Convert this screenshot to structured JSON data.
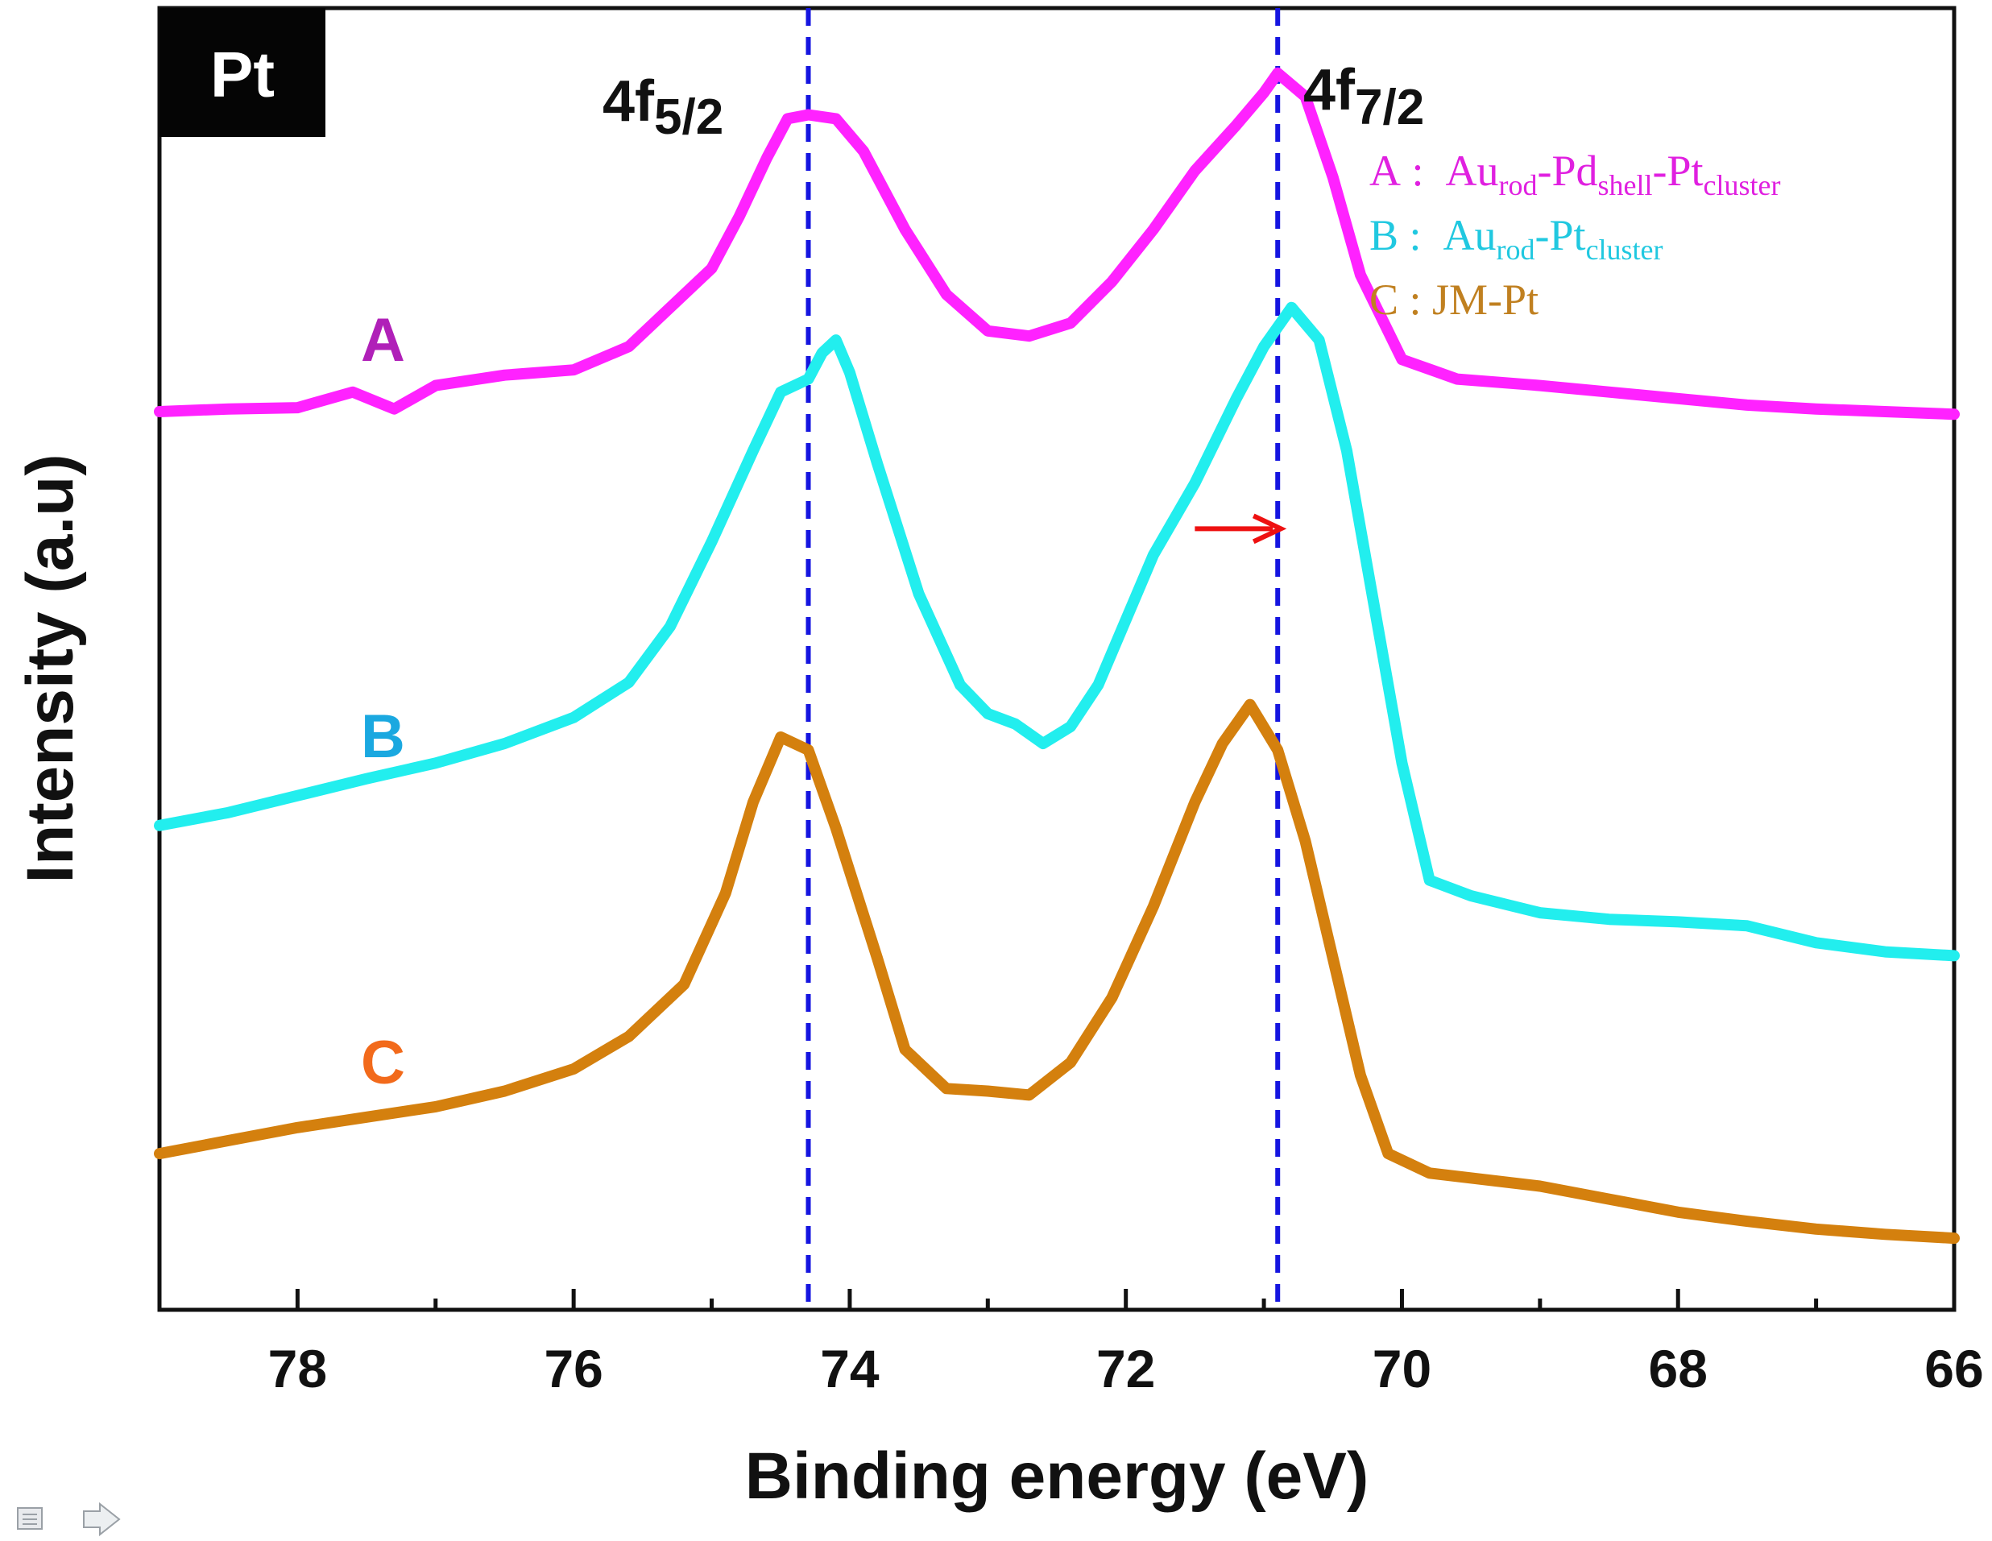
{
  "panel_label": "Pt",
  "peak_labels": {
    "f52": {
      "main": "4f",
      "sub": "5/2",
      "energy": 74.3
    },
    "f72": {
      "main": "4f",
      "sub": "7/2",
      "energy": 70.9
    }
  },
  "curve_letters": {
    "A": "A",
    "B": "B",
    "C": "C"
  },
  "legend": {
    "a": {
      "prefix": "A :  Au",
      "s1": "rod",
      "t1": "-Pd",
      "s2": "shell",
      "t2": "-Pt",
      "s3": "cluster"
    },
    "b": {
      "prefix": "B :  Au",
      "s1": "rod",
      "t1": "-Pt",
      "s2": "cluster"
    },
    "c": {
      "text": "C : JM-Pt"
    }
  },
  "colors": {
    "A": "#ff22ff",
    "B": "#22eeee",
    "C": "#d4800e",
    "A_label": "#b020b8",
    "B_label": "#1aa8e0",
    "C_label": "#f26a1b",
    "legend_A": "#e020e0",
    "legend_B": "#20c8e0",
    "legend_C": "#c08020",
    "dashed": "#1515e0",
    "arrow": "#ee1111"
  },
  "navigation_icons": {
    "left": "page-icon",
    "right": "next-arrow-icon"
  },
  "chart_data": {
    "type": "line",
    "title": "",
    "xlabel": "Binding energy (eV)",
    "ylabel": "Intensity (a.u)",
    "xlim": [
      79,
      66
    ],
    "x_reversed": true,
    "ylim": [
      0,
      10
    ],
    "x_ticks": [
      78,
      76,
      74,
      72,
      70,
      68,
      66
    ],
    "y_ticks_shown": false,
    "reference_lines": [
      74.3,
      70.9
    ],
    "shift_arrow": {
      "from": 71.5,
      "to": 70.9,
      "y": 6.0
    },
    "series": [
      {
        "name": "A : Aurod-Pdshell-Ptcluster",
        "key": "A",
        "points": [
          [
            79.0,
            6.9
          ],
          [
            78.5,
            6.92
          ],
          [
            78.0,
            6.93
          ],
          [
            77.6,
            7.05
          ],
          [
            77.3,
            6.92
          ],
          [
            77.0,
            7.1
          ],
          [
            76.5,
            7.18
          ],
          [
            76.0,
            7.22
          ],
          [
            75.6,
            7.4
          ],
          [
            75.3,
            7.7
          ],
          [
            75.0,
            8.0
          ],
          [
            74.8,
            8.4
          ],
          [
            74.6,
            8.85
          ],
          [
            74.45,
            9.15
          ],
          [
            74.3,
            9.18
          ],
          [
            74.1,
            9.15
          ],
          [
            73.9,
            8.9
          ],
          [
            73.6,
            8.3
          ],
          [
            73.3,
            7.8
          ],
          [
            73.0,
            7.52
          ],
          [
            72.7,
            7.48
          ],
          [
            72.4,
            7.58
          ],
          [
            72.1,
            7.9
          ],
          [
            71.8,
            8.3
          ],
          [
            71.5,
            8.75
          ],
          [
            71.2,
            9.1
          ],
          [
            71.0,
            9.35
          ],
          [
            70.9,
            9.5
          ],
          [
            70.7,
            9.32
          ],
          [
            70.5,
            8.7
          ],
          [
            70.3,
            7.95
          ],
          [
            70.0,
            7.3
          ],
          [
            69.6,
            7.15
          ],
          [
            69.0,
            7.1
          ],
          [
            68.5,
            7.05
          ],
          [
            68.0,
            7.0
          ],
          [
            67.5,
            6.95
          ],
          [
            67.0,
            6.92
          ],
          [
            66.5,
            6.9
          ],
          [
            66.0,
            6.88
          ]
        ]
      },
      {
        "name": "B : Aurod-Ptcluster",
        "key": "B",
        "points": [
          [
            79.0,
            3.72
          ],
          [
            78.5,
            3.82
          ],
          [
            78.0,
            3.95
          ],
          [
            77.5,
            4.08
          ],
          [
            77.0,
            4.2
          ],
          [
            76.5,
            4.35
          ],
          [
            76.0,
            4.55
          ],
          [
            75.6,
            4.82
          ],
          [
            75.3,
            5.25
          ],
          [
            75.0,
            5.9
          ],
          [
            74.7,
            6.6
          ],
          [
            74.5,
            7.05
          ],
          [
            74.3,
            7.15
          ],
          [
            74.2,
            7.35
          ],
          [
            74.1,
            7.45
          ],
          [
            74.0,
            7.2
          ],
          [
            73.8,
            6.5
          ],
          [
            73.5,
            5.5
          ],
          [
            73.2,
            4.8
          ],
          [
            73.0,
            4.58
          ],
          [
            72.8,
            4.5
          ],
          [
            72.6,
            4.35
          ],
          [
            72.4,
            4.48
          ],
          [
            72.2,
            4.8
          ],
          [
            72.0,
            5.3
          ],
          [
            71.8,
            5.8
          ],
          [
            71.5,
            6.35
          ],
          [
            71.2,
            7.0
          ],
          [
            71.0,
            7.4
          ],
          [
            70.8,
            7.7
          ],
          [
            70.6,
            7.45
          ],
          [
            70.4,
            6.6
          ],
          [
            70.2,
            5.4
          ],
          [
            70.0,
            4.2
          ],
          [
            69.8,
            3.3
          ],
          [
            69.5,
            3.18
          ],
          [
            69.0,
            3.05
          ],
          [
            68.5,
            3.0
          ],
          [
            68.0,
            2.98
          ],
          [
            67.5,
            2.95
          ],
          [
            67.0,
            2.82
          ],
          [
            66.5,
            2.75
          ],
          [
            66.0,
            2.72
          ]
        ]
      },
      {
        "name": "C : JM-Pt",
        "key": "C",
        "points": [
          [
            79.0,
            1.2
          ],
          [
            78.5,
            1.3
          ],
          [
            78.0,
            1.4
          ],
          [
            77.5,
            1.48
          ],
          [
            77.0,
            1.56
          ],
          [
            76.5,
            1.68
          ],
          [
            76.0,
            1.85
          ],
          [
            75.6,
            2.1
          ],
          [
            75.2,
            2.5
          ],
          [
            74.9,
            3.2
          ],
          [
            74.7,
            3.9
          ],
          [
            74.5,
            4.4
          ],
          [
            74.3,
            4.3
          ],
          [
            74.1,
            3.7
          ],
          [
            73.8,
            2.7
          ],
          [
            73.6,
            2.0
          ],
          [
            73.3,
            1.7
          ],
          [
            73.0,
            1.68
          ],
          [
            72.7,
            1.65
          ],
          [
            72.4,
            1.9
          ],
          [
            72.1,
            2.4
          ],
          [
            71.8,
            3.1
          ],
          [
            71.5,
            3.9
          ],
          [
            71.3,
            4.35
          ],
          [
            71.1,
            4.65
          ],
          [
            70.9,
            4.3
          ],
          [
            70.7,
            3.6
          ],
          [
            70.5,
            2.7
          ],
          [
            70.3,
            1.8
          ],
          [
            70.1,
            1.2
          ],
          [
            69.8,
            1.05
          ],
          [
            69.0,
            0.95
          ],
          [
            68.5,
            0.85
          ],
          [
            68.0,
            0.75
          ],
          [
            67.5,
            0.68
          ],
          [
            67.0,
            0.62
          ],
          [
            66.5,
            0.58
          ],
          [
            66.0,
            0.55
          ]
        ]
      }
    ]
  }
}
